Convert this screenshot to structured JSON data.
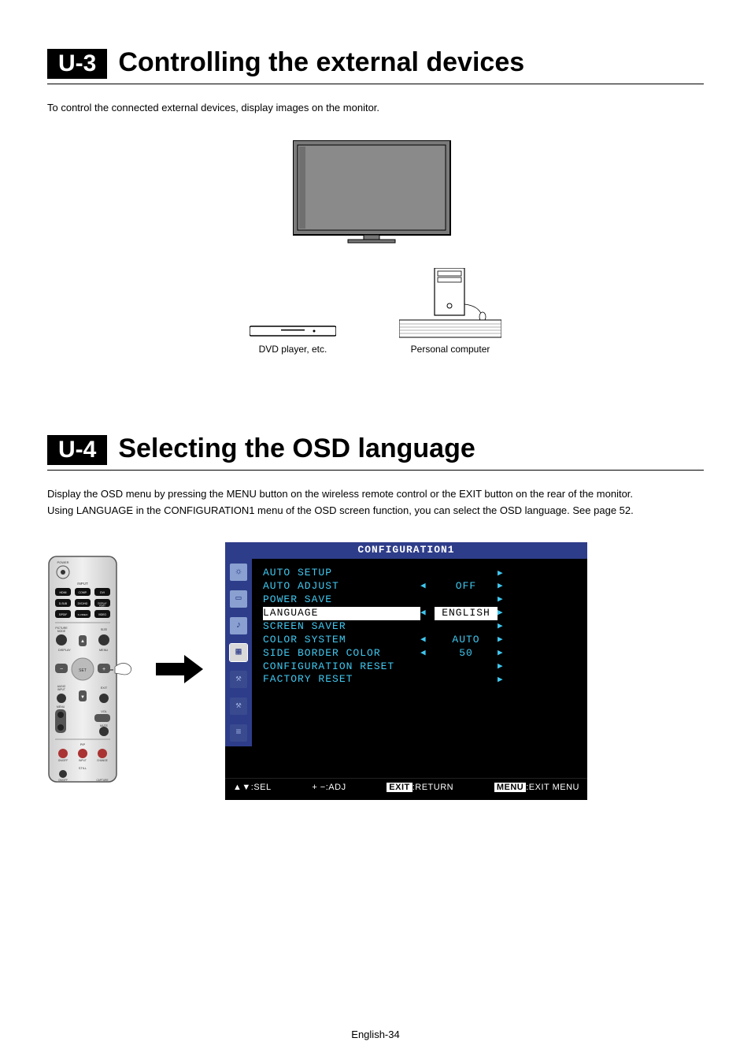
{
  "sections": {
    "u3": {
      "tag": "U-3",
      "title": "Controlling the external devices",
      "body": "To control the connected external devices, display images on the monitor.",
      "diagram": {
        "dvd_label": "DVD player, etc.",
        "pc_label": "Personal computer"
      }
    },
    "u4": {
      "tag": "U-4",
      "title": "Selecting the OSD language",
      "body1": "Display the OSD menu by pressing the MENU button on the wireless remote control or the EXIT button on the rear of the monitor.",
      "body2": "Using LANGUAGE in the CONFIGURATION1 menu of the OSD screen function, you can select the OSD language. See page 52."
    }
  },
  "osd": {
    "title": "CONFIGURATION1",
    "text_color": "#40c8f0",
    "sidebar_bg": "#2e3d8a",
    "items": [
      {
        "label": "AUTO SETUP",
        "left": "",
        "value": "",
        "right": "▶",
        "selected": false
      },
      {
        "label": "AUTO ADJUST",
        "left": "◀",
        "value": "OFF",
        "right": "▶",
        "selected": false
      },
      {
        "label": "POWER SAVE",
        "left": "",
        "value": "",
        "right": "▶",
        "selected": false
      },
      {
        "label": "LANGUAGE",
        "left": "◀",
        "value": "ENGLISH",
        "right": "▶",
        "selected": true
      },
      {
        "label": "SCREEN SAVER",
        "left": "",
        "value": "",
        "right": "▶",
        "selected": false
      },
      {
        "label": "COLOR SYSTEM",
        "left": "◀",
        "value": "AUTO",
        "right": "▶",
        "selected": false
      },
      {
        "label": "SIDE BORDER COLOR",
        "left": "◀",
        "value": "50",
        "right": "▶",
        "selected": false
      },
      {
        "label": "CONFIGURATION RESET",
        "left": "",
        "value": "",
        "right": "▶",
        "selected": false
      },
      {
        "label": "FACTORY RESET",
        "left": "",
        "value": "",
        "right": "▶",
        "selected": false
      }
    ],
    "footer": {
      "sel": "SEL",
      "adj": "ADJ",
      "ret_key": "EXIT",
      "ret": "RETURN",
      "menu_key": "MENU",
      "menu": "EXIT MENU"
    }
  },
  "remote": {
    "rows": [
      [
        "POWER",
        "",
        ""
      ],
      [
        "HDMI",
        "COMP",
        "DVI"
      ],
      [
        "D-SUB",
        "DVD",
        "DISPLAY PORT"
      ],
      [
        "S/PDIF",
        "S-VIDEO",
        "VIDEO"
      ]
    ],
    "labels": {
      "input": "INPUT",
      "picture": "PICTURE MODE",
      "display": "DISPLAY",
      "size": "SIZE",
      "set": "SET",
      "menu": "MENU",
      "exit": "EXIT",
      "audio": "AUDIO INPUT",
      "vol": "VOL",
      "pip": "PIP",
      "still": "STILL",
      "onoff": "ON/OFF",
      "input2": "INPUT",
      "change": "CHANGE",
      "capture": "CAPTURE"
    }
  },
  "page_num": "English-34"
}
